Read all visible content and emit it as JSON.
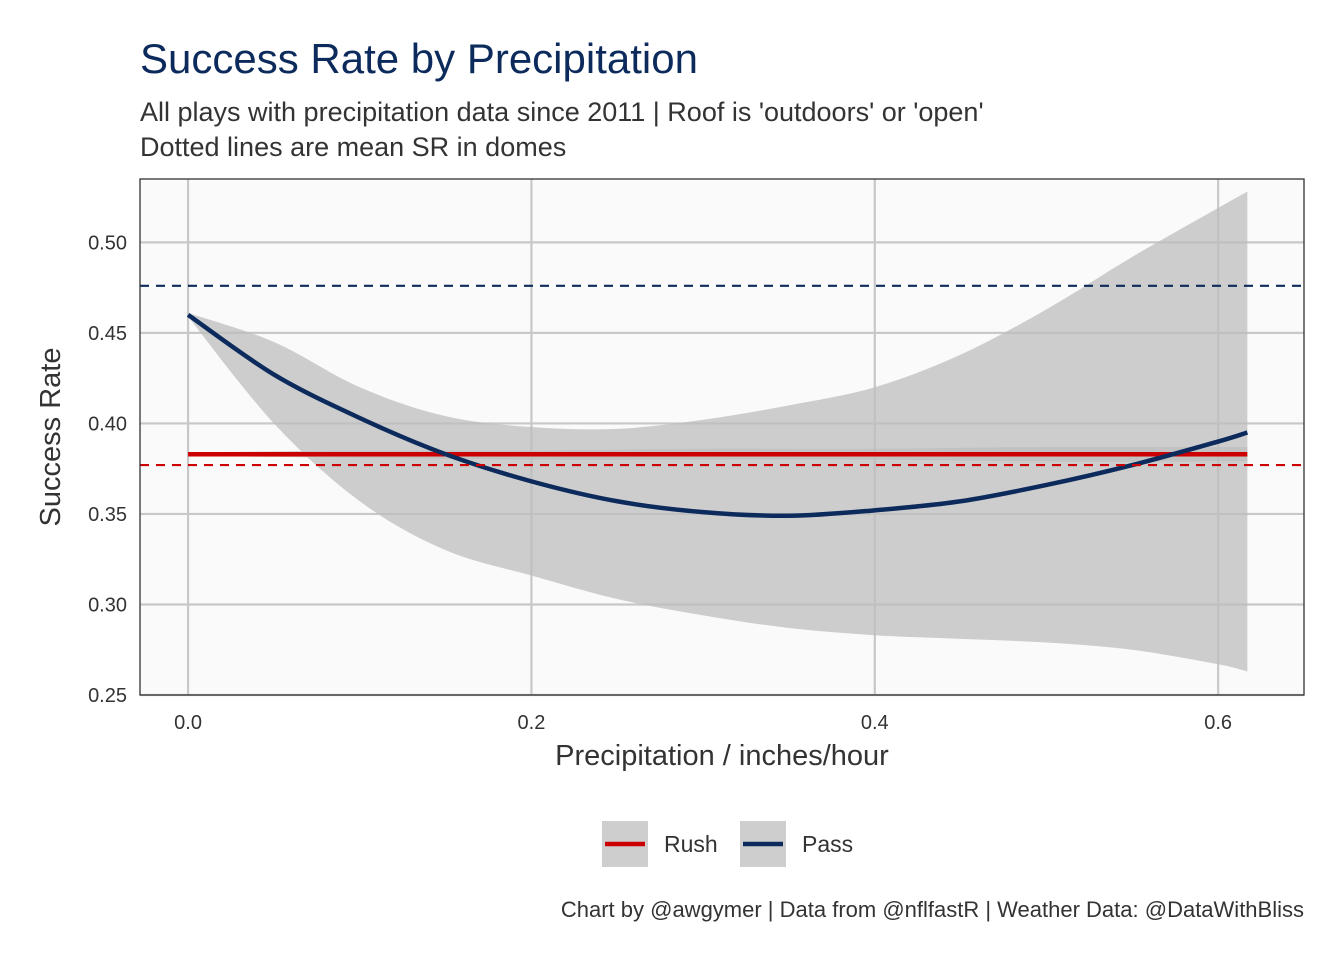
{
  "colors": {
    "title": "#0C2B5C",
    "text": "#333333",
    "rush": "#CC0000",
    "pass": "#0C2B5C",
    "ribbon": "#BDBDBD",
    "panel_bg": "#FAFAFA",
    "grid": "#C8C8C8"
  },
  "legend_placement": "bottom",
  "chart_data": {
    "type": "line",
    "title": "Success Rate by Precipitation",
    "subtitle": [
      "All plays with precipitation data since 2011 | Roof is 'outdoors' or 'open'",
      "Dotted lines are mean SR in domes"
    ],
    "xlabel": "Precipitation / inches/hour",
    "ylabel": "Success Rate",
    "caption": "Chart by @awgymer | Data from @nflfastR | Weather Data: @DataWithBliss",
    "xlim": [
      -0.028,
      0.65
    ],
    "ylim": [
      0.25,
      0.535
    ],
    "x_ticks": [
      0.0,
      0.2,
      0.4,
      0.6
    ],
    "x_tick_labels": [
      "0.0",
      "0.2",
      "0.4",
      "0.6"
    ],
    "y_ticks": [
      0.25,
      0.3,
      0.35,
      0.4,
      0.45,
      0.5
    ],
    "y_tick_labels": [
      "0.25",
      "0.30",
      "0.35",
      "0.40",
      "0.45",
      "0.50"
    ],
    "grid": true,
    "legend": [
      "Rush",
      "Pass"
    ],
    "series": [
      {
        "name": "Rush",
        "color": "#CC0000",
        "x": [
          0.0,
          0.1,
          0.2,
          0.3,
          0.4,
          0.5,
          0.617
        ],
        "y": [
          0.383,
          0.383,
          0.383,
          0.383,
          0.383,
          0.383,
          0.383
        ],
        "ci_lower": [
          0.382,
          0.381,
          0.38,
          0.38,
          0.38,
          0.379,
          0.379
        ],
        "ci_upper": [
          0.384,
          0.385,
          0.385,
          0.386,
          0.386,
          0.387,
          0.387
        ]
      },
      {
        "name": "Pass",
        "color": "#0C2B5C",
        "x": [
          0.0,
          0.05,
          0.1,
          0.15,
          0.2,
          0.25,
          0.3,
          0.35,
          0.4,
          0.45,
          0.5,
          0.55,
          0.6,
          0.617
        ],
        "y": [
          0.46,
          0.427,
          0.403,
          0.383,
          0.368,
          0.357,
          0.351,
          0.349,
          0.352,
          0.357,
          0.366,
          0.377,
          0.39,
          0.395
        ],
        "ci_lower": [
          0.459,
          0.4,
          0.357,
          0.33,
          0.316,
          0.303,
          0.294,
          0.287,
          0.283,
          0.281,
          0.279,
          0.275,
          0.267,
          0.263
        ],
        "ci_upper": [
          0.461,
          0.445,
          0.42,
          0.404,
          0.398,
          0.397,
          0.402,
          0.41,
          0.42,
          0.438,
          0.463,
          0.492,
          0.519,
          0.528
        ]
      }
    ],
    "reference_lines": [
      {
        "series": "Pass",
        "y": 0.476,
        "style": "dashed",
        "color": "#0C2B5C"
      },
      {
        "series": "Rush",
        "y": 0.377,
        "style": "dashed",
        "color": "#CC0000"
      }
    ]
  }
}
